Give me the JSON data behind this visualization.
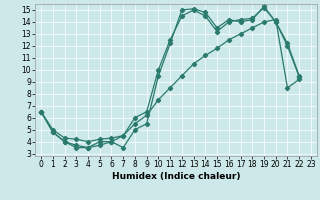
{
  "xlabel": "Humidex (Indice chaleur)",
  "bg_color": "#cce8e8",
  "grid_color": "#ffffff",
  "line_color": "#2a7a6e",
  "xlim": [
    -0.5,
    23.5
  ],
  "ylim": [
    2.8,
    15.5
  ],
  "xticks": [
    0,
    1,
    2,
    3,
    4,
    5,
    6,
    7,
    8,
    9,
    10,
    11,
    12,
    13,
    14,
    15,
    16,
    17,
    18,
    19,
    20,
    21,
    22,
    23
  ],
  "yticks": [
    3,
    4,
    5,
    6,
    7,
    8,
    9,
    10,
    11,
    12,
    13,
    14,
    15
  ],
  "line1_x": [
    0,
    1,
    2,
    3,
    4,
    5,
    6,
    7,
    8,
    9,
    10,
    11,
    12,
    13,
    14,
    15,
    16,
    17,
    18,
    19,
    20,
    21,
    22
  ],
  "line1_y": [
    6.5,
    4.8,
    4.0,
    3.7,
    3.5,
    3.7,
    4.0,
    3.5,
    5.0,
    5.5,
    9.5,
    12.2,
    15.0,
    15.1,
    14.8,
    13.5,
    14.2,
    14.0,
    14.2,
    15.3,
    14.0,
    12.2,
    9.5
  ],
  "line2_x": [
    0,
    1,
    2,
    3,
    4,
    5,
    6,
    7,
    8,
    9,
    10,
    11,
    12,
    13,
    14,
    15,
    16,
    17,
    18,
    19,
    20,
    21,
    22
  ],
  "line2_y": [
    6.5,
    4.8,
    4.0,
    3.5,
    3.5,
    4.0,
    4.0,
    4.5,
    6.0,
    6.5,
    10.0,
    12.5,
    14.5,
    15.0,
    14.5,
    13.2,
    14.0,
    14.2,
    14.3,
    15.2,
    14.0,
    12.0,
    9.4
  ],
  "line3_x": [
    0,
    1,
    2,
    3,
    4,
    5,
    6,
    7,
    8,
    9,
    10,
    11,
    12,
    13,
    14,
    15,
    16,
    17,
    18,
    19,
    20,
    21,
    22
  ],
  "line3_y": [
    6.5,
    5.0,
    4.3,
    4.2,
    4.0,
    4.2,
    4.3,
    4.5,
    5.5,
    6.2,
    7.5,
    8.5,
    9.5,
    10.5,
    11.2,
    11.8,
    12.5,
    13.0,
    13.5,
    14.0,
    14.2,
    8.5,
    9.2
  ],
  "tick_fontsize": 5.5,
  "xlabel_fontsize": 6.5,
  "figsize": [
    3.2,
    2.0
  ],
  "dpi": 100
}
